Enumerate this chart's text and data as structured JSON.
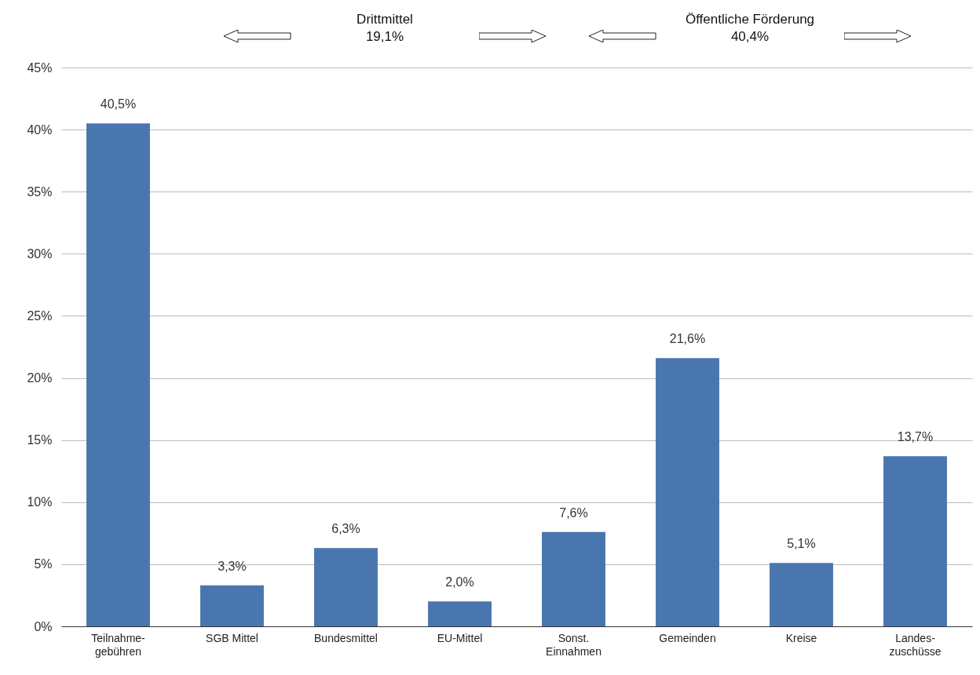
{
  "chart_data": {
    "type": "bar",
    "categories": [
      "Teilnahme-\ngebühren",
      "SGB Mittel",
      "Bundesmittel",
      "EU-Mittel",
      "Sonst.\nEinnahmen",
      "Gemeinden",
      "Kreise",
      "Landes-\nzuschüsse"
    ],
    "values": [
      40.5,
      3.3,
      6.3,
      2.0,
      7.6,
      21.6,
      5.1,
      13.7
    ],
    "value_labels": [
      "40,5%",
      "3,3%",
      "6,3%",
      "2,0%",
      "7,6%",
      "21,6%",
      "5,1%",
      "13,7%"
    ],
    "color": "#4a76b0",
    "ylim": [
      0,
      45
    ],
    "yticks": [
      {
        "value": 0,
        "label": "0%"
      },
      {
        "value": 5,
        "label": "5%"
      },
      {
        "value": 10,
        "label": "10%"
      },
      {
        "value": 15,
        "label": "15%"
      },
      {
        "value": 20,
        "label": "20%"
      },
      {
        "value": 25,
        "label": "25%"
      },
      {
        "value": 30,
        "label": "30%"
      },
      {
        "value": 35,
        "label": "35%"
      },
      {
        "value": 40,
        "label": "40%"
      },
      {
        "value": 45,
        "label": "45%"
      }
    ],
    "grid": "y",
    "annotations": [
      "Drittmittel\n19,1%",
      "Öffentliche Förderung\n40,4%"
    ]
  }
}
